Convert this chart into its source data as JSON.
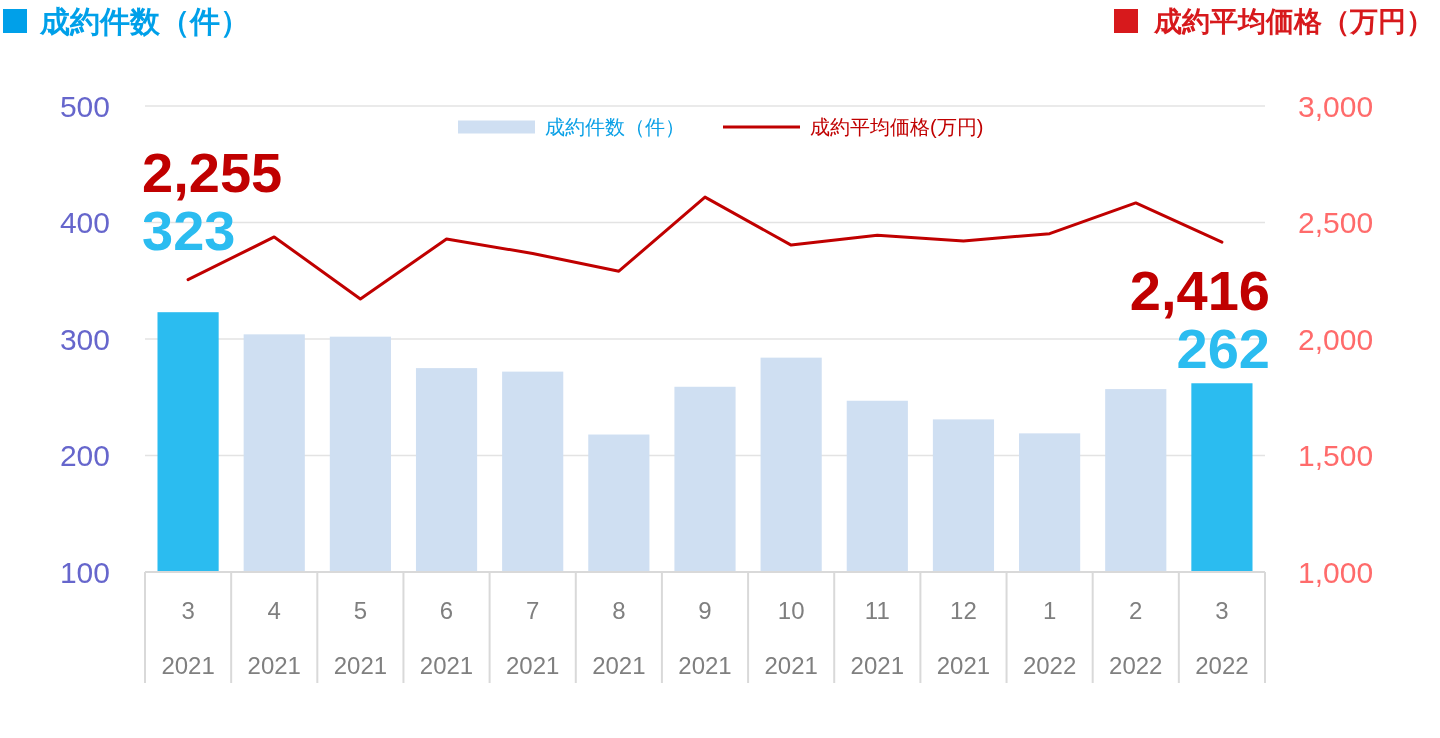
{
  "chart_data": {
    "type": "bar",
    "ylabel": "成約件数（件）",
    "y2label": "成約平均価格（万円）",
    "categories": [
      "3\n2021",
      "4\n2021",
      "5\n2021",
      "6\n2021",
      "7\n2021",
      "8\n2021",
      "9\n2021",
      "10\n2021",
      "11\n2021",
      "12\n2021",
      "1\n2022",
      "2\n2022",
      "3\n2022"
    ],
    "series": [
      {
        "name": "成約件数（件）",
        "color": "#cfdff2",
        "colors": [
          "#2bbcf0",
          "#cfdff2",
          "#cfdff2",
          "#cfdff2",
          "#cfdff2",
          "#cfdff2",
          "#cfdff2",
          "#cfdff2",
          "#cfdff2",
          "#cfdff2",
          "#cfdff2",
          "#cfdff2",
          "#2bbcf0"
        ],
        "values": [
          323,
          304,
          302,
          275,
          272,
          218,
          259,
          284,
          247,
          231,
          219,
          257,
          262
        ],
        "value_labels": [
          "323",
          null,
          null,
          null,
          null,
          null,
          null,
          null,
          null,
          null,
          null,
          null,
          "262"
        ]
      },
      {
        "name": "成約平均価格(万円)",
        "type": "line",
        "axis": "y2",
        "color": "#c00000",
        "values": [
          2255,
          2438,
          2172,
          2429,
          2367,
          2291,
          2609,
          2403,
          2445,
          2421,
          2452,
          2584,
          2416
        ],
        "value_labels": [
          "2,255",
          null,
          null,
          null,
          null,
          null,
          null,
          null,
          null,
          null,
          null,
          null,
          "2,416"
        ]
      }
    ],
    "ylim": [
      100,
      500
    ],
    "yticks": [
      100,
      200,
      300,
      400,
      500
    ],
    "y2lim": [
      1000,
      3000
    ],
    "y2ticks": [
      {
        "value": 1000,
        "label": "1,000"
      },
      {
        "value": 1500,
        "label": "1,500"
      },
      {
        "value": 2000,
        "label": "2,000"
      },
      {
        "value": 2500,
        "label": "2,500"
      },
      {
        "value": 3000,
        "label": "3,000"
      }
    ],
    "grid": "y",
    "legend": "top"
  }
}
